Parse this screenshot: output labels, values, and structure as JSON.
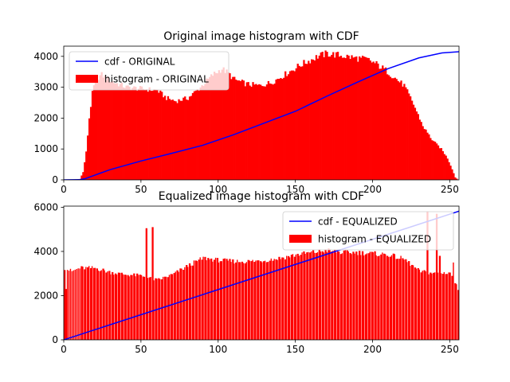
{
  "chart_data": [
    {
      "type": "bar",
      "title": "Original image histogram with CDF",
      "xlabel": "",
      "ylabel": "",
      "xlim": [
        0,
        256
      ],
      "ylim": [
        0,
        4330
      ],
      "xticks": [
        0,
        50,
        100,
        150,
        200,
        250
      ],
      "yticks": [
        0,
        1000,
        2000,
        3000,
        4000
      ],
      "legend_position": "top-left",
      "series": [
        {
          "name": "histogram - ORIGINAL",
          "kind": "bar",
          "color": "#ff0000",
          "profile": [
            [
              0,
              0
            ],
            [
              6,
              0
            ],
            [
              10,
              30
            ],
            [
              12,
              250
            ],
            [
              14,
              900
            ],
            [
              16,
              2000
            ],
            [
              18,
              2800
            ],
            [
              20,
              3250
            ],
            [
              24,
              3400
            ],
            [
              30,
              3200
            ],
            [
              40,
              3000
            ],
            [
              50,
              2950
            ],
            [
              60,
              2900
            ],
            [
              66,
              2650
            ],
            [
              72,
              2550
            ],
            [
              80,
              2650
            ],
            [
              88,
              3000
            ],
            [
              96,
              3400
            ],
            [
              102,
              3600
            ],
            [
              106,
              3450
            ],
            [
              110,
              3250
            ],
            [
              118,
              3100
            ],
            [
              126,
              3050
            ],
            [
              134,
              3150
            ],
            [
              144,
              3450
            ],
            [
              152,
              3700
            ],
            [
              158,
              3850
            ],
            [
              164,
              4000
            ],
            [
              170,
              4090
            ],
            [
              180,
              4020
            ],
            [
              188,
              3950
            ],
            [
              196,
              3900
            ],
            [
              202,
              3750
            ],
            [
              208,
              3550
            ],
            [
              214,
              3300
            ],
            [
              220,
              3050
            ],
            [
              226,
              2450
            ],
            [
              232,
              1750
            ],
            [
              238,
              1300
            ],
            [
              244,
              1000
            ],
            [
              248,
              700
            ],
            [
              251,
              350
            ],
            [
              253,
              80
            ],
            [
              255,
              0
            ]
          ]
        },
        {
          "name": "cdf - ORIGINAL",
          "kind": "line",
          "color": "#0000ff",
          "points": [
            [
              0,
              0
            ],
            [
              10,
              5
            ],
            [
              14,
              40
            ],
            [
              20,
              150
            ],
            [
              30,
              330
            ],
            [
              50,
              610
            ],
            [
              70,
              860
            ],
            [
              90,
              1120
            ],
            [
              110,
              1460
            ],
            [
              130,
              1840
            ],
            [
              150,
              2220
            ],
            [
              170,
              2700
            ],
            [
              190,
              3160
            ],
            [
              210,
              3600
            ],
            [
              230,
              3950
            ],
            [
              245,
              4110
            ],
            [
              256,
              4150
            ]
          ]
        }
      ]
    },
    {
      "type": "bar",
      "title": "Equalized image histogram with CDF",
      "xlabel": "",
      "ylabel": "",
      "xlim": [
        0,
        256
      ],
      "ylim": [
        0,
        6050
      ],
      "xticks": [
        0,
        50,
        100,
        150,
        200,
        250
      ],
      "yticks": [
        0,
        2000,
        4000,
        6000
      ],
      "legend_position": "top-right",
      "series": [
        {
          "name": "histogram - EQUALIZED",
          "kind": "bar",
          "color": "#ff0000",
          "profile": [
            [
              0,
              3250
            ],
            [
              5,
              3100
            ],
            [
              10,
              3250
            ],
            [
              20,
              3250
            ],
            [
              30,
              3050
            ],
            [
              40,
              2950
            ],
            [
              50,
              2900
            ],
            [
              60,
              2700
            ],
            [
              70,
              2950
            ],
            [
              80,
              3350
            ],
            [
              90,
              3700
            ],
            [
              100,
              3600
            ],
            [
              110,
              3550
            ],
            [
              120,
              3550
            ],
            [
              130,
              3600
            ],
            [
              140,
              3700
            ],
            [
              150,
              3850
            ],
            [
              160,
              3950
            ],
            [
              170,
              4050
            ],
            [
              180,
              3950
            ],
            [
              190,
              3950
            ],
            [
              200,
              3900
            ],
            [
              210,
              3850
            ],
            [
              220,
              3650
            ],
            [
              230,
              3100
            ],
            [
              240,
              3000
            ],
            [
              250,
              3050
            ],
            [
              255,
              2300
            ]
          ],
          "gap_bins": [
            2,
            3,
            4,
            5,
            6,
            7,
            8,
            9,
            10,
            12,
            14,
            16,
            18,
            20,
            22,
            24,
            26,
            28,
            30,
            32,
            34,
            36,
            38,
            40,
            42,
            44,
            46,
            48,
            50,
            52,
            54,
            56,
            58,
            60,
            62,
            64,
            66,
            68,
            70,
            72,
            74,
            76,
            78,
            80,
            82,
            84,
            86,
            88,
            90,
            92,
            94,
            96,
            98,
            100,
            102,
            104,
            106,
            108,
            110,
            112,
            114,
            116,
            118,
            120,
            122,
            124,
            126,
            128,
            130,
            132,
            134,
            136,
            138,
            140,
            142,
            144,
            146,
            148,
            150,
            152,
            154,
            156,
            158,
            160,
            162,
            164,
            166,
            168,
            170,
            172,
            174,
            176,
            178,
            180,
            182,
            184,
            186,
            188,
            190,
            192,
            194,
            196,
            198,
            200,
            202,
            204,
            206,
            208,
            210,
            212,
            214,
            216,
            218,
            220,
            222,
            224,
            226,
            228,
            230,
            232,
            234,
            236,
            238,
            240,
            242,
            244,
            246,
            248,
            250,
            252,
            254
          ],
          "spikes": [
            [
              1,
              2300
            ],
            [
              53,
              5050
            ],
            [
              57,
              5100
            ],
            [
              235,
              5800
            ],
            [
              241,
              5700
            ],
            [
              243,
              3800
            ],
            [
              252,
              3500
            ]
          ]
        },
        {
          "name": "cdf - EQUALIZED",
          "kind": "line",
          "color": "#0000ff",
          "points": [
            [
              0,
              0
            ],
            [
              256,
              5820
            ]
          ]
        }
      ]
    }
  ]
}
